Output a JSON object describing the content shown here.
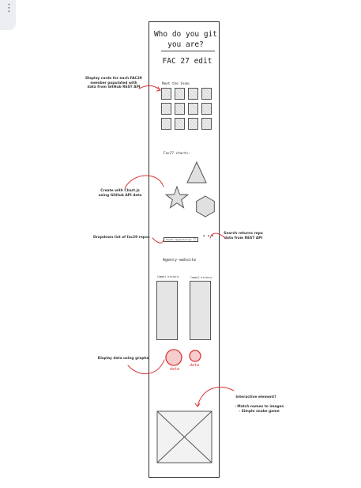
{
  "menu": {
    "icon": "more-vert-icon",
    "glyph": "⋮"
  },
  "wireframe": {
    "title": "Who do you git you are?",
    "subtitle": "FAC 27 edit",
    "team_label": "Meet the team:",
    "charts_label": "Fac27 charts:",
    "dropdown_text": "fac27 repositories",
    "dropdown_arrow": "▽",
    "search_glyph": "▪ ▪ ▪",
    "agency_label": "Agency-website",
    "commit_history_1": "Commit history:",
    "commit_history_2": "Commit history:",
    "data_label_1": "data",
    "data_label_2": "data"
  },
  "annotations": {
    "cards": "Display cards for each FAC29 member populated with data from GitHub REST API",
    "chartjs": "Create with Chart.js using GitHub API data",
    "dropdown": "Dropdown list of fac29 repos",
    "search": "Search returns repo data from REST API",
    "graphs": "Display data using graphs",
    "interactive_title": "Interactive element?",
    "interactive_item_1": "- Match names to images",
    "interactive_item_2": "- Simple snake game"
  },
  "colors": {
    "accent_red": "#d93535",
    "outline": "#333333",
    "shape_fill": "#e0e0e0"
  }
}
